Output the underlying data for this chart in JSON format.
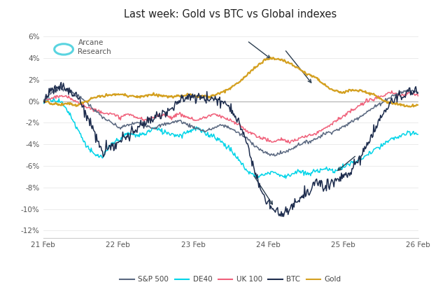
{
  "title": "Last week: Gold vs BTC vs Global indexes",
  "title_fontsize": 10.5,
  "background_color": "#ffffff",
  "xlim": [
    0,
    500
  ],
  "ylim": [
    -0.127,
    0.072
  ],
  "yticks": [
    -0.12,
    -0.1,
    -0.08,
    -0.06,
    -0.04,
    -0.02,
    0.0,
    0.02,
    0.04,
    0.06
  ],
  "ytick_labels": [
    "-12%",
    "-10%",
    "-8%",
    "-6%",
    "-4%",
    "-2%",
    "0%",
    "2%",
    "4%",
    "6%"
  ],
  "xtick_positions": [
    0,
    100,
    200,
    300,
    400,
    500
  ],
  "xtick_labels": [
    "21 Feb",
    "22 Feb",
    "23 Feb",
    "24 Feb",
    "25 Feb",
    "26 Feb"
  ],
  "colors": {
    "sp500": "#5a6880",
    "de40": "#00d4e8",
    "uk100": "#f0607a",
    "btc": "#1e2d4e",
    "gold": "#d4a020"
  },
  "legend_labels": [
    "S&P 500",
    "DE40",
    "UK 100",
    "BTC",
    "Gold"
  ],
  "arcane_color": "#5ad4e0",
  "arrow_color": "#2c3e50",
  "lw_thin": 1.1,
  "lw_gold": 1.6
}
